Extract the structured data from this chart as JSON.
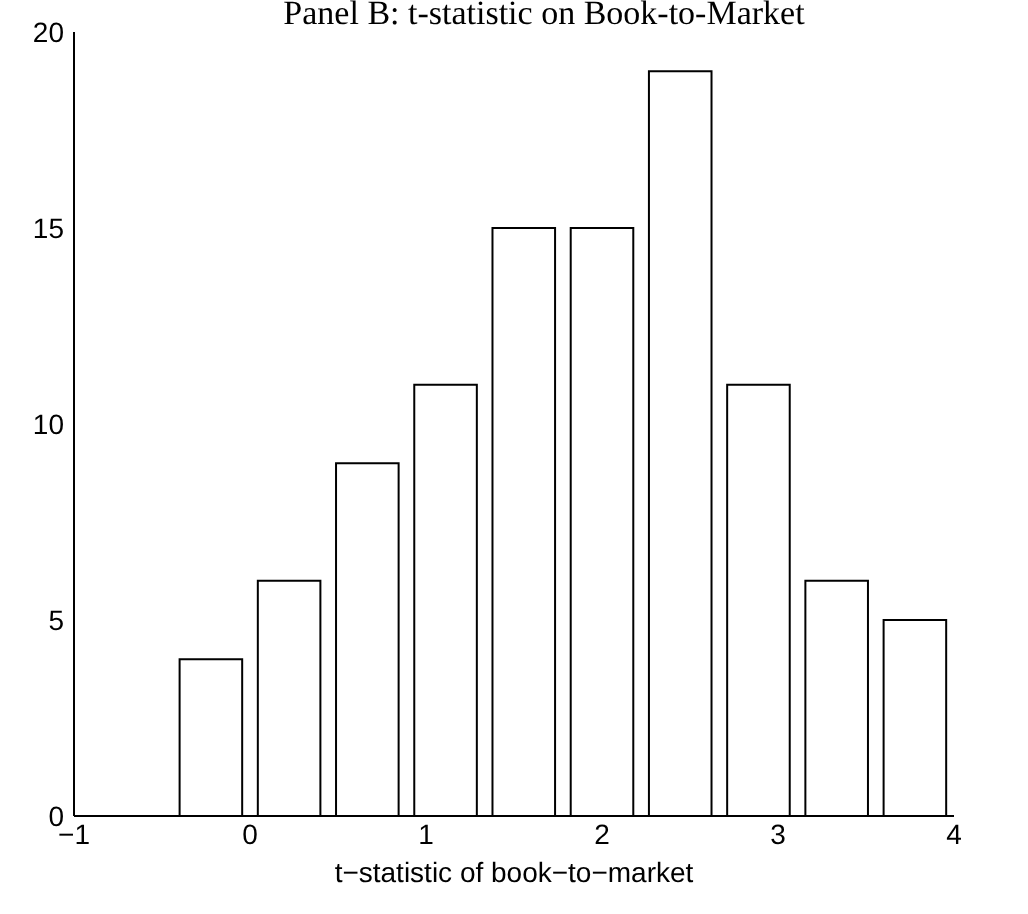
{
  "chart_data": {
    "type": "histogram",
    "title": "Panel B: t-statistic on Book-to-Market",
    "xlabel": "t−statistic of book−to−market",
    "bins": [
      -0.4444,
      0,
      0.4444,
      0.8889,
      1.3333,
      1.7778,
      2.2222,
      2.6667,
      3.1111,
      3.5556,
      4
    ],
    "values": [
      4,
      6,
      9,
      11,
      15,
      15,
      19,
      11,
      6,
      5
    ],
    "color": "#ffffff",
    "xlim": [
      -1,
      4
    ],
    "xticks": [
      {
        "value": -1,
        "label": "−1"
      },
      0,
      1,
      2,
      3,
      4
    ],
    "ylim": [
      0,
      20
    ],
    "yticks": [
      0,
      5,
      10,
      15,
      20
    ]
  }
}
